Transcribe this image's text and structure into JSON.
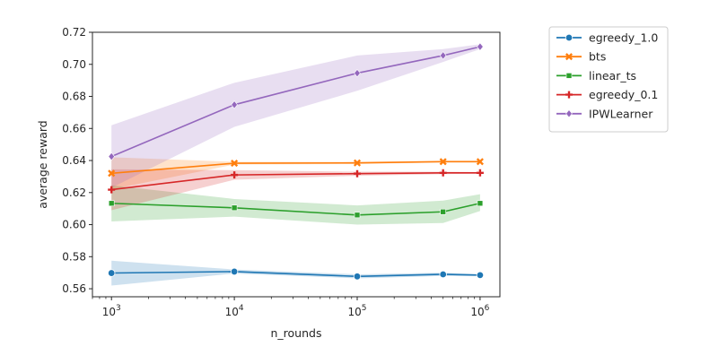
{
  "chart_data": {
    "type": "line",
    "xlabel": "n_rounds",
    "ylabel": "average reward",
    "xscale": "log",
    "xlim": [
      700,
      1450000
    ],
    "ylim": [
      0.555,
      0.72
    ],
    "x_ticks": [
      {
        "value": 1000,
        "base": "10",
        "exp": "3"
      },
      {
        "value": 10000,
        "base": "10",
        "exp": "4"
      },
      {
        "value": 100000,
        "base": "10",
        "exp": "5"
      },
      {
        "value": 1000000,
        "base": "10",
        "exp": "6"
      }
    ],
    "y_ticks": [
      {
        "value": 0.56,
        "label": "0.56"
      },
      {
        "value": 0.58,
        "label": "0.58"
      },
      {
        "value": 0.6,
        "label": "0.60"
      },
      {
        "value": 0.62,
        "label": "0.62"
      },
      {
        "value": 0.64,
        "label": "0.64"
      },
      {
        "value": 0.66,
        "label": "0.66"
      },
      {
        "value": 0.68,
        "label": "0.68"
      },
      {
        "value": 0.7,
        "label": "0.70"
      },
      {
        "value": 0.72,
        "label": "0.72"
      }
    ],
    "legend_position": "outside-right-top",
    "grid": false,
    "x": [
      1000,
      10000,
      100000,
      500000,
      1000000
    ],
    "series": [
      {
        "name": "egreedy_1.0",
        "color": "#1f77b4",
        "marker": "circle",
        "values": [
          0.5698,
          0.5707,
          0.5677,
          0.569,
          0.5685
        ],
        "lower": [
          0.562,
          0.5695,
          0.5665,
          0.568,
          0.5678
        ],
        "upper": [
          0.5775,
          0.572,
          0.569,
          0.57,
          0.5692
        ]
      },
      {
        "name": "bts",
        "color": "#ff7f0e",
        "marker": "x",
        "values": [
          0.632,
          0.6383,
          0.6385,
          0.6393,
          0.6393
        ],
        "lower": [
          0.622,
          0.6375,
          0.6378,
          0.6388,
          0.6388
        ],
        "upper": [
          0.642,
          0.6392,
          0.6392,
          0.6398,
          0.6398
        ]
      },
      {
        "name": "linear_ts",
        "color": "#2ca02c",
        "marker": "square",
        "values": [
          0.6133,
          0.6105,
          0.606,
          0.608,
          0.6133
        ],
        "lower": [
          0.602,
          0.605,
          0.6,
          0.601,
          0.6085
        ],
        "upper": [
          0.6245,
          0.616,
          0.612,
          0.615,
          0.619
        ]
      },
      {
        "name": "egreedy_0.1",
        "color": "#d62728",
        "marker": "plus",
        "values": [
          0.6218,
          0.631,
          0.6318,
          0.6323,
          0.6323
        ],
        "lower": [
          0.609,
          0.628,
          0.6305,
          0.6315,
          0.6318
        ],
        "upper": [
          0.6345,
          0.634,
          0.633,
          0.633,
          0.6328
        ]
      },
      {
        "name": "IPWLearner",
        "color": "#9467bd",
        "marker": "diamond",
        "values": [
          0.6425,
          0.6748,
          0.6945,
          0.7055,
          0.711
        ],
        "lower": [
          0.623,
          0.661,
          0.6835,
          0.7015,
          0.7095
        ],
        "upper": [
          0.662,
          0.6885,
          0.7055,
          0.7095,
          0.7125
        ]
      }
    ]
  }
}
